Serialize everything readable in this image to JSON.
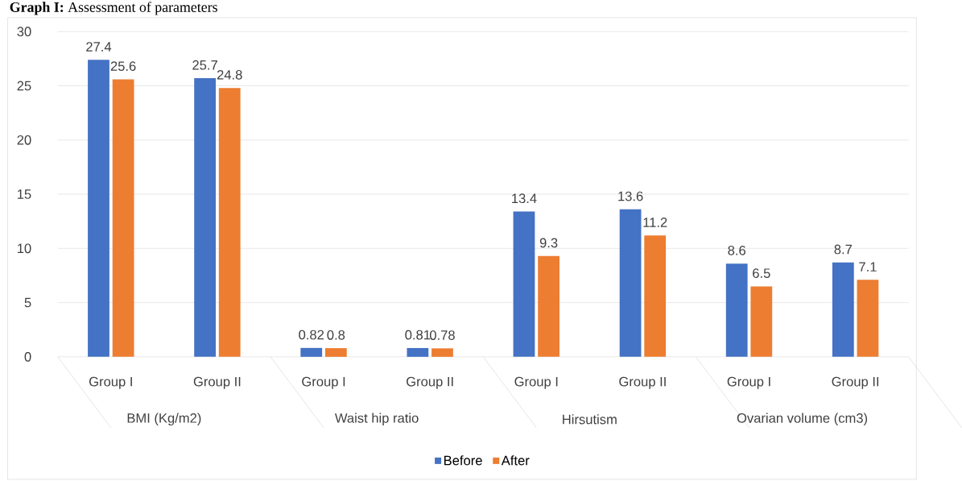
{
  "chart_data": {
    "type": "bar",
    "title": "**Graph I:** Assessment of parameters",
    "categories": [
      "Group I",
      "Group II",
      "Group I",
      "Group II",
      "Group I",
      "Group II",
      "Group I",
      "Group II"
    ],
    "annotations": [
      "BMI (Kg/m2)",
      "Waist hip ratio",
      "Hirsutism",
      "Ovarian volume (cm3)"
    ],
    "series": [
      {
        "name": "Before",
        "color": "#4472c4",
        "values": [
          27.4,
          25.7,
          0.82,
          0.81,
          13.4,
          13.6,
          8.6,
          8.7
        ]
      },
      {
        "name": "After",
        "color": "#ed7d31",
        "values": [
          25.6,
          24.8,
          0.8,
          0.78,
          9.3,
          11.2,
          6.5,
          7.1
        ]
      }
    ],
    "ylim": [
      0,
      30
    ],
    "yticks": [
      0,
      5,
      10,
      15,
      20,
      25,
      30
    ],
    "grid": "y",
    "legend": "bottom",
    "data_labels": true
  }
}
